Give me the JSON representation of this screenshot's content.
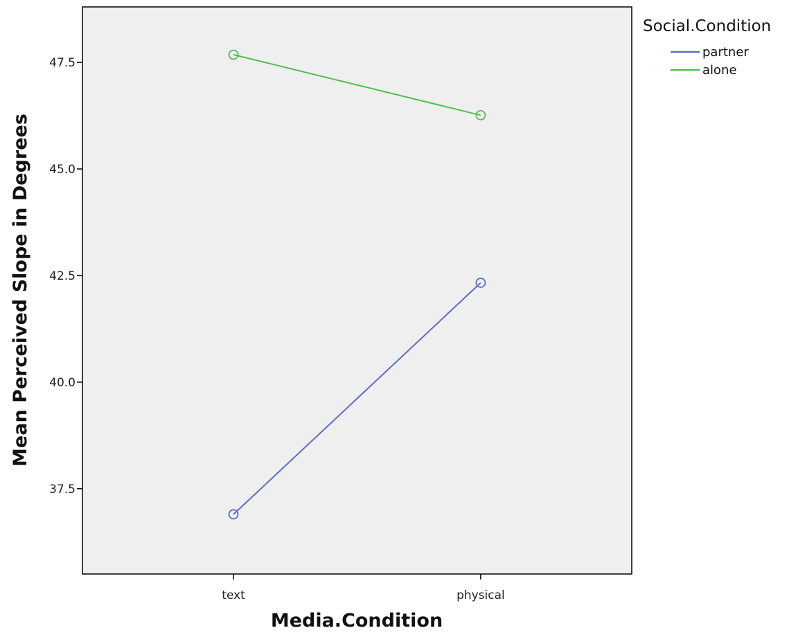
{
  "chart_data": {
    "type": "line",
    "xlabel": "Media.Condition",
    "ylabel": "Mean Perceived Slope in Degrees",
    "categories": [
      "text",
      "physical"
    ],
    "ylim": [
      35.5,
      48.8
    ],
    "yticks": [
      37.5,
      40.0,
      42.5,
      45.0,
      47.5
    ],
    "ytick_labels": [
      "37.5",
      "40.0",
      "42.5",
      "45.0",
      "47.5"
    ],
    "grid": false,
    "legend": {
      "title": "Social.Condition",
      "placement": "right-top"
    },
    "series": [
      {
        "name": "partner",
        "color": "#5a6fc4",
        "marker": "open-circle",
        "values": [
          36.9,
          42.33
        ]
      },
      {
        "name": "alone",
        "color": "#4fbf4f",
        "marker": "open-circle",
        "values": [
          47.68,
          46.26
        ]
      }
    ],
    "background": "#efefef"
  }
}
